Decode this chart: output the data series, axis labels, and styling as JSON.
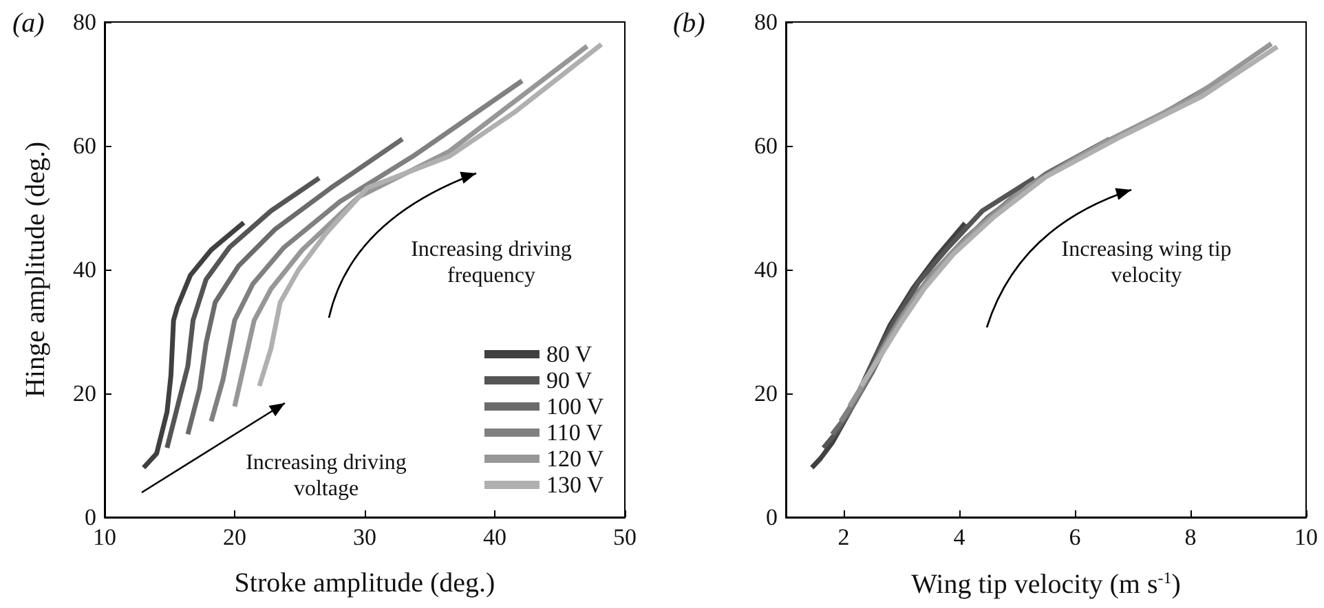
{
  "chart_data": [
    {
      "type": "line",
      "title": "(a)",
      "xlabel": "Stroke amplitude (deg.)",
      "ylabel": "Hinge amplitude (deg.)",
      "xlim": [
        10,
        50
      ],
      "xticks": [
        10,
        20,
        30,
        40,
        50
      ],
      "ylim": [
        0,
        80
      ],
      "yticks": [
        0,
        20,
        40,
        60,
        80
      ],
      "grid": false,
      "legend": "bottom right",
      "marker": "none",
      "line_style": "solid",
      "annotations": [
        "Increasing driving voltage",
        "Increasing driving frequency"
      ],
      "series": [
        {
          "name": "80 V",
          "color": "#404040",
          "x": [
            13.0,
            14.0,
            14.8,
            15.1,
            15.3,
            15.6,
            16.6,
            18.2,
            20.7
          ],
          "values": [
            8.0,
            10.3,
            17,
            22.9,
            31.8,
            34,
            39.1,
            43.2,
            47.6
          ]
        },
        {
          "name": "90 V",
          "color": "#555555",
          "x": [
            14.8,
            15.5,
            16.4,
            16.8,
            17.8,
            19.6,
            22.8,
            26.5
          ],
          "values": [
            11.2,
            17,
            24.4,
            31.8,
            38.4,
            43.6,
            49.5,
            54.8
          ]
        },
        {
          "name": "100 V",
          "color": "#6b6b6b",
          "x": [
            16.4,
            17.3,
            17.8,
            18.5,
            20.3,
            23.1,
            27.4,
            32.9
          ],
          "values": [
            13.4,
            20.7,
            28.1,
            34.7,
            40.6,
            46.5,
            53.2,
            61.1
          ]
        },
        {
          "name": "110 V",
          "color": "#808080",
          "x": [
            18.2,
            19.1,
            20.0,
            21.4,
            23.8,
            28.1,
            33.7,
            42.1
          ],
          "values": [
            15.5,
            22.2,
            31.8,
            37.7,
            43.6,
            51.0,
            58.3,
            70.5
          ]
        },
        {
          "name": "120 V",
          "color": "#979797",
          "x": [
            20.0,
            20.7,
            21.5,
            22.8,
            25.2,
            29.5,
            36.5,
            41.1,
            47.1
          ],
          "values": [
            17.9,
            24.4,
            31.8,
            36.9,
            43.2,
            51.7,
            59.1,
            66.5,
            76.1
          ]
        },
        {
          "name": "130 V",
          "color": "#b0b0b0",
          "x": [
            21.9,
            22.8,
            23.5,
            24.9,
            27.0,
            30.2,
            36.5,
            41.5,
            48.2
          ],
          "values": [
            21.2,
            27.3,
            34.7,
            39.9,
            45.8,
            53.2,
            58.3,
            65.4,
            76.4
          ]
        }
      ]
    },
    {
      "type": "line",
      "title": "(b)",
      "xlabel": "Wing tip velocity (m s$^{-1}$)",
      "xlim": [
        1,
        10
      ],
      "xticks": [
        2,
        4,
        6,
        8,
        10
      ],
      "ylim": [
        0,
        80
      ],
      "yticks": [
        0,
        20,
        40,
        60,
        80
      ],
      "grid": false,
      "legend": false,
      "marker": "none",
      "line_style": "solid",
      "annotations": [
        "Increasing wing tip velocity"
      ],
      "series": [
        {
          "color": "#404040",
          "x": [
            1.45,
            1.6,
            1.8,
            2.1,
            2.5,
            2.8,
            3.2,
            3.6,
            4.1
          ],
          "values": [
            8,
            9.5,
            12,
            17,
            25,
            31,
            37,
            42,
            47.5
          ]
        },
        {
          "color": "#555555",
          "x": [
            1.65,
            1.9,
            2.2,
            2.55,
            2.9,
            3.3,
            3.8,
            4.4,
            5.3
          ],
          "values": [
            11.2,
            14,
            19,
            26,
            32,
            38,
            43.5,
            49.5,
            54.8
          ]
        },
        {
          "color": "#6b6b6b",
          "x": [
            1.8,
            2.1,
            2.5,
            2.85,
            3.3,
            3.8,
            4.5,
            5.5,
            6.6
          ],
          "values": [
            13.4,
            17,
            23.5,
            30,
            36.5,
            42,
            48.5,
            55.5,
            61.1
          ]
        },
        {
          "color": "#808080",
          "x": [
            1.95,
            2.3,
            2.65,
            3.0,
            3.5,
            4.1,
            4.9,
            6.0,
            7.2,
            8.5
          ],
          "values": [
            15.5,
            20.5,
            27,
            32.5,
            39,
            45,
            51.5,
            58,
            63.5,
            70.5
          ]
        },
        {
          "color": "#979797",
          "x": [
            2.1,
            2.4,
            2.8,
            3.2,
            3.7,
            4.3,
            5.2,
            6.5,
            8.0,
            9.4
          ],
          "values": [
            17.9,
            22.5,
            29,
            35,
            41,
            46.5,
            53.5,
            60.5,
            67.5,
            76.5
          ]
        },
        {
          "color": "#b0b0b0",
          "x": [
            2.3,
            2.6,
            3.0,
            3.4,
            3.9,
            4.6,
            5.5,
            6.8,
            8.2,
            9.5
          ],
          "values": [
            21.2,
            25.5,
            31.5,
            37,
            42.5,
            48.5,
            55,
            61.5,
            68,
            76
          ]
        }
      ]
    }
  ]
}
